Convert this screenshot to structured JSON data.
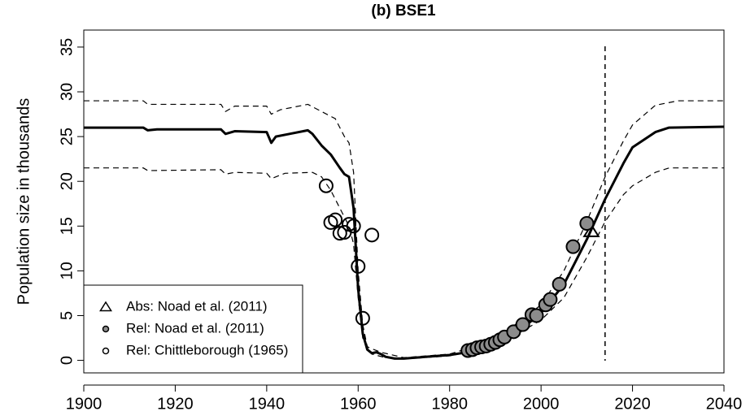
{
  "chart_data": {
    "type": "line",
    "title": "(b) BSE1",
    "y_label": "Population size in thousands",
    "xlim": [
      1900,
      2040
    ],
    "xticks": [
      1900,
      1920,
      1940,
      1960,
      1980,
      2000,
      2020,
      2040
    ],
    "ylim": [
      -1.4,
      36.9
    ],
    "yticks": [
      0,
      5,
      10,
      15,
      20,
      25,
      30,
      35
    ],
    "vline": {
      "x": 2014,
      "color": "#000000",
      "dash": true
    },
    "legend": "bottom left",
    "series": [
      {
        "mark": "line",
        "color": "#000000",
        "width": 3,
        "dash": false,
        "x": [
          1900,
          1913,
          1914,
          1916,
          1930,
          1931,
          1933,
          1940,
          1941,
          1942,
          1945,
          1949,
          1950,
          1952,
          1954,
          1956,
          1957,
          1958,
          1959,
          1960,
          1961,
          1962,
          1963,
          1964,
          1965,
          1966,
          1968,
          1970,
          1975,
          1980,
          1985,
          1990,
          1995,
          2000,
          2005,
          2010,
          2014,
          2018,
          2020,
          2025,
          2028,
          2040
        ],
        "values": [
          26,
          26,
          25.7,
          25.8,
          25.8,
          25.3,
          25.6,
          25.5,
          24.3,
          25,
          25.3,
          25.7,
          25.3,
          24,
          23,
          21.5,
          20.8,
          20.5,
          17,
          8,
          3,
          1.2,
          0.8,
          0.9,
          0.7,
          0.4,
          0.2,
          0.2,
          0.4,
          0.6,
          1.0,
          1.8,
          3.2,
          5.3,
          8.5,
          13.5,
          18,
          22,
          23.8,
          25.5,
          26,
          26.1
        ]
      },
      {
        "mark": "line",
        "color": "#000000",
        "width": 1.2,
        "dash": true,
        "x": [
          1900,
          1913,
          1914,
          1930,
          1931,
          1933,
          1940,
          1941,
          1943,
          1949,
          1952,
          1955,
          1956,
          1957,
          1958,
          1959,
          1960,
          1961,
          1962,
          1965,
          1970,
          1980,
          1990,
          2000,
          2005,
          2010,
          2014,
          2018,
          2020,
          2025,
          2030,
          2040
        ],
        "values": [
          29,
          29,
          28.6,
          28.6,
          27.8,
          28.4,
          28.4,
          27.5,
          28,
          28.6,
          27.8,
          27,
          26,
          25,
          24.3,
          21,
          10,
          4,
          1.5,
          0.9,
          0.3,
          0.7,
          2.3,
          6.2,
          10,
          15.5,
          20.5,
          24.5,
          26.3,
          28.5,
          29,
          29
        ]
      },
      {
        "mark": "line",
        "color": "#000000",
        "width": 1.2,
        "dash": true,
        "x": [
          1900,
          1913,
          1914,
          1930,
          1931,
          1933,
          1940,
          1941,
          1944,
          1950,
          1952,
          1954,
          1956,
          1958,
          1959,
          1960,
          1961,
          1963,
          1966,
          1970,
          1980,
          1990,
          2000,
          2005,
          2010,
          2014,
          2018,
          2020,
          2025,
          2028,
          2040
        ],
        "values": [
          21.5,
          21.5,
          21.2,
          21.3,
          20.8,
          21,
          20.9,
          20.3,
          20.9,
          21,
          20.5,
          19,
          17,
          15,
          13,
          7,
          2.5,
          0.7,
          0.3,
          0.15,
          0.5,
          1.5,
          4.5,
          7,
          11.5,
          15.5,
          18.5,
          19.5,
          21,
          21.5,
          21.5
        ]
      },
      {
        "mark": "triangle",
        "name": "Abs: Noad et al. (2011)",
        "color": "#000000",
        "fill": "none",
        "x": [
          2011
        ],
        "values": [
          14.4
        ]
      },
      {
        "mark": "circle",
        "name": "Rel: Noad et al. (2011)",
        "color": "#000000",
        "fill": "#8c8c8c",
        "x": [
          1984,
          1985,
          1986,
          1987,
          1988,
          1989,
          1990,
          1991,
          1992,
          1994,
          1996,
          1998,
          1999,
          2001,
          2002,
          2004,
          2007,
          2010
        ],
        "values": [
          1.1,
          1.2,
          1.4,
          1.5,
          1.6,
          1.8,
          2,
          2.3,
          2.6,
          3.2,
          4,
          5.1,
          5,
          6.2,
          6.8,
          8.5,
          12.7,
          15.3
        ]
      },
      {
        "mark": "circle",
        "name": "Rel: Chittleborough (1965)",
        "color": "#000000",
        "fill": "none",
        "x": [
          1953,
          1954,
          1955,
          1956,
          1957,
          1958,
          1959,
          1960,
          1961,
          1963
        ],
        "values": [
          19.5,
          15.4,
          15.7,
          14.2,
          14.3,
          15.2,
          15,
          10.5,
          4.7,
          14
        ]
      }
    ]
  }
}
